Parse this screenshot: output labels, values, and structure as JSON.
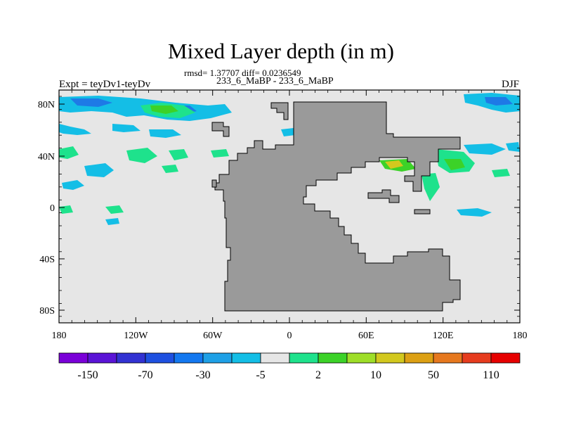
{
  "title": "Mixed Layer depth (in m)",
  "stats": "rmsd= 1.37707  diff= 0.0236549",
  "subtitle": "233_6_MaBP - 233_6_MaBP",
  "left_label": "Expt = teyDv1-teyDv",
  "right_label": "DJF",
  "lat_ticks": [
    "80N",
    "40N",
    "0",
    "40S",
    "80S"
  ],
  "lon_ticks": [
    "180",
    "120W",
    "60W",
    "0",
    "60E",
    "120E",
    "180"
  ],
  "colorbar": {
    "colors": [
      "#7a00d8",
      "#5a14d6",
      "#3232d2",
      "#1e50e0",
      "#1478f0",
      "#1ea0e6",
      "#14bee6",
      "#e6e6e6",
      "#1ee28c",
      "#3cd228",
      "#9ede28",
      "#d2c81e",
      "#dca014",
      "#e6781e",
      "#e63c1e",
      "#e60000"
    ],
    "labels": [
      "-150",
      "-70",
      "-30",
      "-5",
      "2",
      "10",
      "50",
      "110"
    ]
  },
  "colors": {
    "ocean_background": "#e6e6e6",
    "land": "#9a9a9a",
    "anomaly_cyan": "#14bee6",
    "anomaly_blue": "#1e7ae6",
    "anomaly_green": "#1ee28c",
    "anomaly_lightgreen": "#3cd228",
    "anomaly_yellow": "#d2c81e"
  }
}
